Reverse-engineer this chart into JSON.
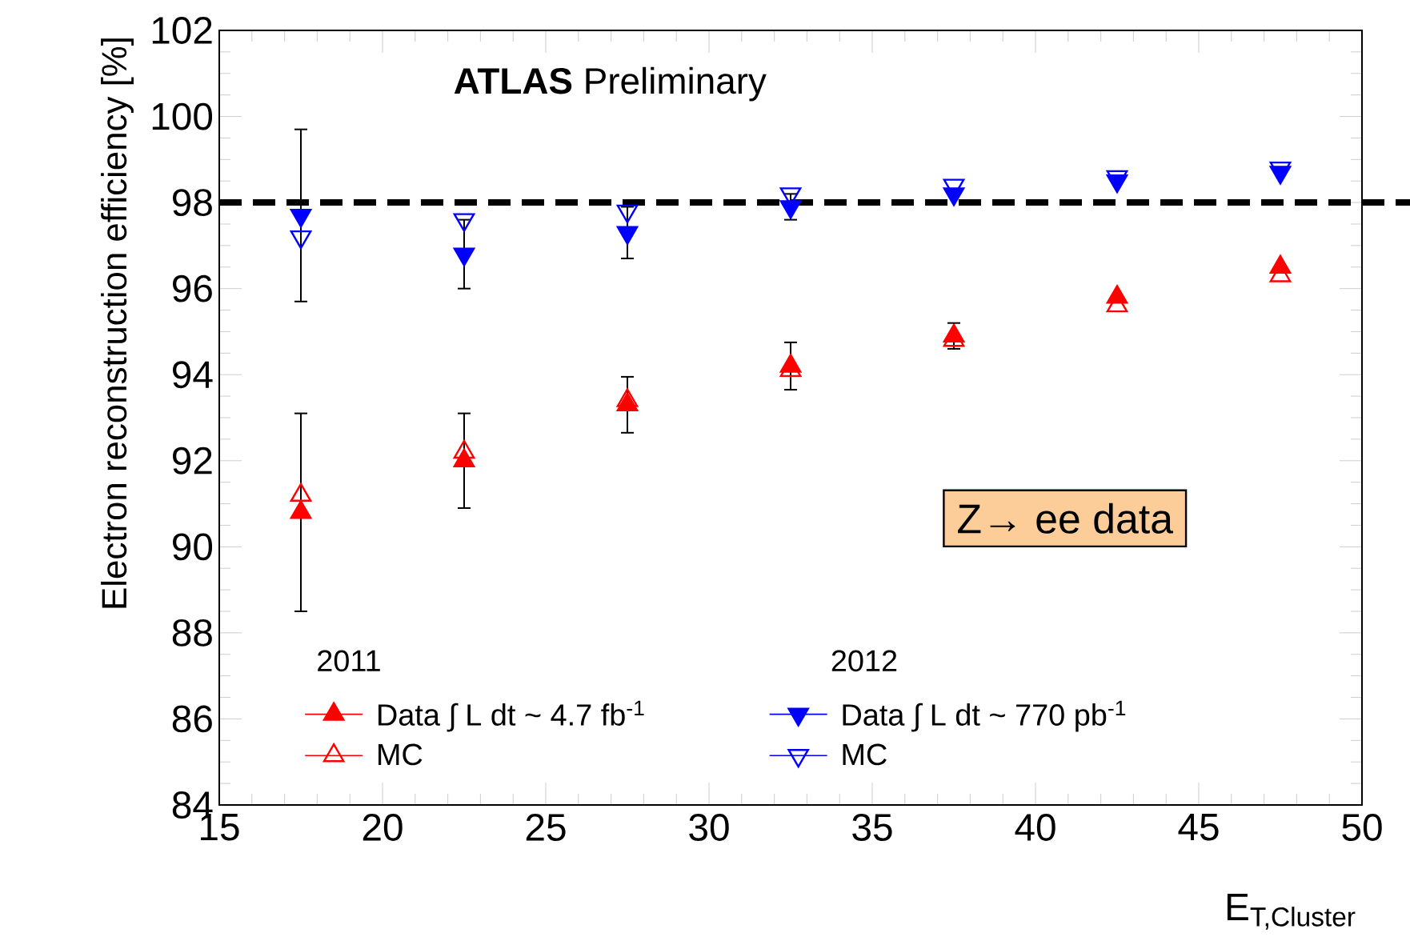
{
  "chart_data": {
    "type": "scatter",
    "xlabel": "E$_{T,Cluster}$",
    "ylabel": "Electron reconstruction efficiency [%]",
    "x": [
      17.5,
      22.5,
      27.5,
      32.5,
      37.5,
      42.5,
      47.5
    ],
    "series": [
      {
        "name": "Data ∫ L dt ~ 4.7 fb$^{-1}$",
        "color": "#ff0000",
        "marker": "triangle",
        "values": [
          90.8,
          92.0,
          93.3,
          94.2,
          94.9,
          95.8,
          96.5
        ],
        "errors": [
          2.3,
          1.1,
          0.65,
          0.55,
          0.3,
          null,
          null
        ]
      },
      {
        "name": "MC",
        "color": "#ff0000",
        "marker": "triangle-open",
        "values": [
          91.2,
          92.2,
          93.4,
          94.1,
          94.8,
          95.6,
          96.3
        ]
      },
      {
        "name": "Data ∫ L dt ~ 770 pb$^{-1}$",
        "color": "#0000ff",
        "marker": "triangle-down",
        "values": [
          97.7,
          96.8,
          97.3,
          97.9,
          98.2,
          98.5,
          98.7
        ],
        "errors": [
          2.0,
          0.8,
          0.6,
          0.3,
          null,
          null,
          null
        ]
      },
      {
        "name": "MC",
        "color": "#0000ff",
        "marker": "triangle-down-open",
        "values": [
          97.2,
          97.6,
          97.8,
          98.2,
          98.4,
          98.6,
          98.8
        ]
      }
    ],
    "annotations": [
      "2011",
      "2012",
      "**ATLAS** Preliminary",
      "Z→ ee data"
    ],
    "ref_lines": [
      {
        "axis": "y",
        "value": 98,
        "color": "#000000",
        "line_style": "dashed"
      }
    ],
    "xlim": [
      15,
      50
    ],
    "xticks": [
      15,
      20,
      25,
      30,
      35,
      40,
      45,
      50
    ],
    "ylim": [
      84,
      102
    ],
    "yticks": [
      84,
      86,
      88,
      90,
      92,
      94,
      96,
      98,
      100,
      102
    ],
    "grid": false,
    "legend": "bottom"
  }
}
